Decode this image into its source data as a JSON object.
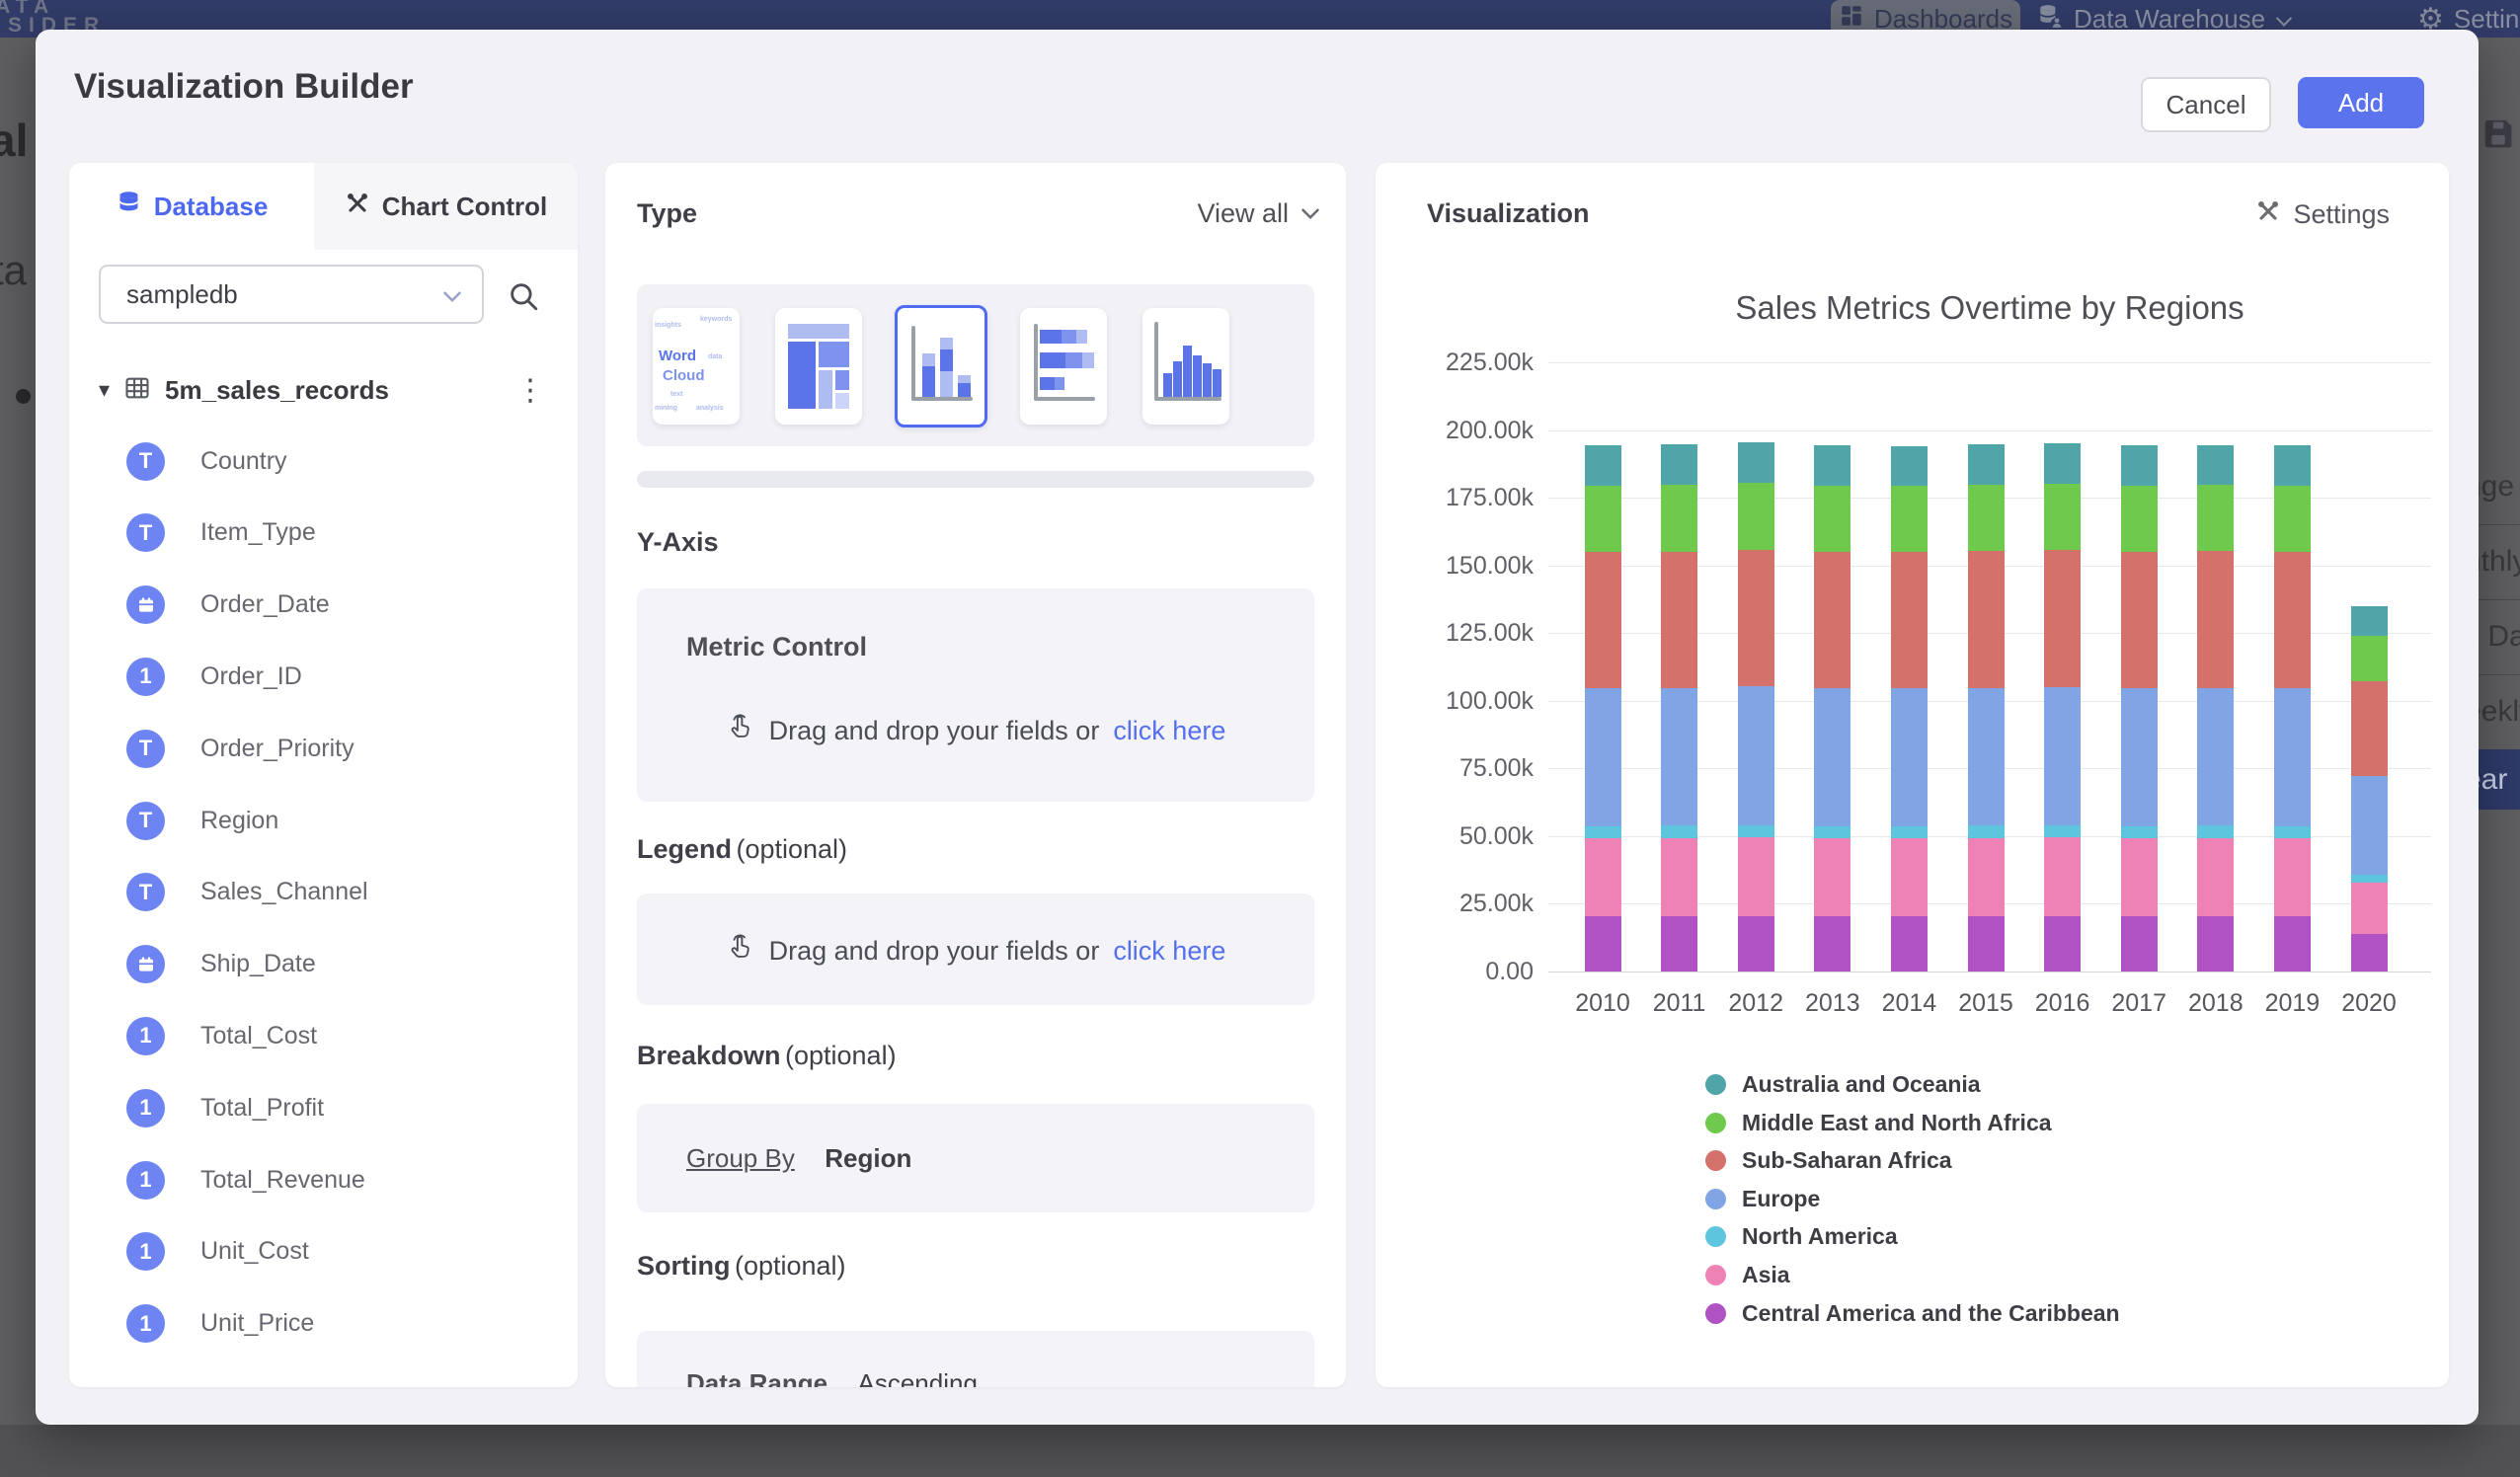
{
  "topbar": {
    "brand_line1": "DATA",
    "brand_line2": "INSIDER",
    "dashboards_label": "Dashboards",
    "data_warehouse_label": "Data Warehouse",
    "settings_label": "Settings"
  },
  "backdrop": {
    "left_fragments": [
      "al",
      "ta"
    ],
    "right_fragments": [
      "nge",
      "nthly",
      "k Date",
      "eekly"
    ],
    "selected_fragment": "ear"
  },
  "modal": {
    "title": "Visualization Builder",
    "cancel_label": "Cancel",
    "add_label": "Add"
  },
  "database_panel": {
    "tab_database": "Database",
    "tab_chart_control": "Chart Control",
    "selected_database": "sampledb",
    "table_name": "5m_sales_records",
    "fields": [
      {
        "name": "Country",
        "type": "text"
      },
      {
        "name": "Item_Type",
        "type": "text"
      },
      {
        "name": "Order_Date",
        "type": "date"
      },
      {
        "name": "Order_ID",
        "type": "number"
      },
      {
        "name": "Order_Priority",
        "type": "text"
      },
      {
        "name": "Region",
        "type": "text"
      },
      {
        "name": "Sales_Channel",
        "type": "text"
      },
      {
        "name": "Ship_Date",
        "type": "date"
      },
      {
        "name": "Total_Cost",
        "type": "number"
      },
      {
        "name": "Total_Profit",
        "type": "number"
      },
      {
        "name": "Total_Revenue",
        "type": "number"
      },
      {
        "name": "Unit_Cost",
        "type": "number"
      },
      {
        "name": "Unit_Price",
        "type": "number"
      }
    ]
  },
  "type_panel": {
    "heading": "Type",
    "view_all_label": "View all",
    "types": [
      "word-cloud",
      "treemap",
      "stacked-column",
      "horizontal-stacked-bar",
      "histogram"
    ],
    "selected_type": "stacked-column",
    "word_cloud_words": [
      "Word",
      "Cloud"
    ],
    "word_cloud_minor": [
      "insights",
      "keywords",
      "data",
      "text",
      "mining",
      "analysis"
    ]
  },
  "config_panel": {
    "y_axis_heading": "Y-Axis",
    "metric_control_label": "Metric Control",
    "drop_text": "Drag and drop your fields or",
    "drop_link": "click here",
    "legend_heading": "Legend",
    "optional_suffix": "(optional)",
    "breakdown_heading": "Breakdown",
    "group_by_label": "Group By",
    "group_by_value": "Region",
    "sorting_heading": "Sorting",
    "sorting_field": "Data Range",
    "sorting_value": "Ascending"
  },
  "viz_panel": {
    "heading": "Visualization",
    "settings_label": "Settings"
  },
  "colors": {
    "accent_blue": "#5570ee",
    "add_button": "#5b74ee",
    "topbar_navy": "#313c68",
    "field_icon_blue": "#6d84f2"
  },
  "chart_data": {
    "type": "bar",
    "stacked": true,
    "title": "Sales Metrics Overtime by Regions",
    "categories": [
      "2010",
      "2011",
      "2012",
      "2013",
      "2014",
      "2015",
      "2016",
      "2017",
      "2018",
      "2019",
      "2020"
    ],
    "units": "thousands",
    "series": [
      {
        "name": "Central America and the Caribbean",
        "color": "#b052c4",
        "values_k": [
          20.5,
          20.5,
          20.6,
          20.5,
          20.5,
          20.5,
          20.6,
          20.5,
          20.5,
          20.5,
          13.9
        ]
      },
      {
        "name": "Asia",
        "color": "#ee82b4",
        "values_k": [
          28.8,
          28.9,
          29.0,
          28.8,
          28.8,
          28.9,
          28.9,
          28.8,
          28.9,
          28.8,
          18.8
        ]
      },
      {
        "name": "North America",
        "color": "#5ec5de",
        "values_k": [
          4.4,
          4.4,
          4.5,
          4.4,
          4.4,
          4.4,
          4.5,
          4.4,
          4.4,
          4.4,
          3.2
        ]
      },
      {
        "name": "Europe",
        "color": "#80a4e4",
        "values_k": [
          51.0,
          50.9,
          51.2,
          51.0,
          50.9,
          51.0,
          51.2,
          51.0,
          51.0,
          51.0,
          36.5
        ]
      },
      {
        "name": "Sub-Saharan Africa",
        "color": "#d5716b",
        "values_k": [
          50.3,
          50.4,
          50.6,
          50.3,
          50.3,
          50.4,
          50.5,
          50.3,
          50.4,
          50.3,
          34.9
        ]
      },
      {
        "name": "Middle East and North Africa",
        "color": "#6fc94c",
        "values_k": [
          24.5,
          24.6,
          24.7,
          24.5,
          24.5,
          24.6,
          24.6,
          24.5,
          24.5,
          24.6,
          16.8
        ]
      },
      {
        "name": "Australia and Oceania",
        "color": "#4fa5a8",
        "values_k": [
          14.8,
          14.9,
          15.0,
          14.8,
          14.8,
          14.9,
          14.9,
          14.8,
          14.8,
          14.9,
          10.9
        ]
      }
    ],
    "legend_order": [
      "Australia and Oceania",
      "Middle East and North Africa",
      "Sub-Saharan Africa",
      "Europe",
      "North America",
      "Asia",
      "Central America and the Caribbean"
    ],
    "ylim_k": [
      0,
      225
    ],
    "ytick_labels": [
      "225.00k",
      "200.00k",
      "175.00k",
      "150.00k",
      "125.00k",
      "100.00k",
      "75.00k",
      "50.00k",
      "25.00k",
      "0.00"
    ],
    "grid": true,
    "legend_position": "bottom-left"
  }
}
